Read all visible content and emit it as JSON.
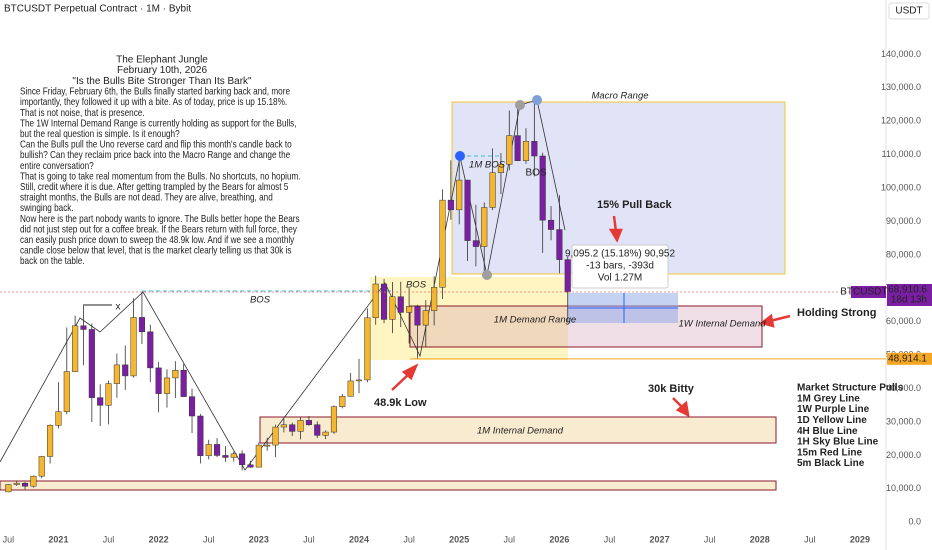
{
  "header": {
    "symbol": "BTCUSDT Perpetual Contract · 1M · Bybit",
    "currency": "USDT"
  },
  "chart_data": {
    "type": "candlestick",
    "x": [
      "2020-07",
      "2020-08",
      "2020-09",
      "2020-10",
      "2020-11",
      "2020-12",
      "2021-01",
      "2021-02",
      "2021-03",
      "2021-04",
      "2021-05",
      "2021-06",
      "2021-07",
      "2021-08",
      "2021-09",
      "2021-10",
      "2021-11",
      "2021-12",
      "2022-01",
      "2022-02",
      "2022-03",
      "2022-04",
      "2022-05",
      "2022-06",
      "2022-07",
      "2022-08",
      "2022-09",
      "2022-10",
      "2022-11",
      "2022-12",
      "2023-01",
      "2023-02",
      "2023-03",
      "2023-04",
      "2023-05",
      "2023-06",
      "2023-07",
      "2023-08",
      "2023-09",
      "2023-10",
      "2023-11",
      "2023-12",
      "2024-01",
      "2024-02",
      "2024-03",
      "2024-04",
      "2024-05",
      "2024-06",
      "2024-07",
      "2024-08",
      "2024-09",
      "2024-10",
      "2024-11",
      "2024-12",
      "2025-01",
      "2025-02",
      "2025-03",
      "2025-04",
      "2025-05",
      "2025-06",
      "2025-07",
      "2025-08",
      "2025-09",
      "2025-10",
      "2025-11",
      "2025-12",
      "2026-01",
      "2026-02"
    ],
    "open": [
      9100,
      11300,
      11700,
      10800,
      13800,
      19700,
      29000,
      33100,
      45100,
      58800,
      57700,
      37300,
      35000,
      41500,
      47100,
      43800,
      61300,
      57000,
      46200,
      38500,
      43200,
      45500,
      37600,
      31800,
      19900,
      23300,
      20000,
      19400,
      20500,
      17200,
      16500,
      23100,
      23100,
      28500,
      29200,
      27200,
      30500,
      29200,
      26000,
      27000,
      34600,
      37700,
      42300,
      42600,
      61200,
      71300,
      60700,
      67500,
      62800,
      64600,
      59000,
      63300,
      70300,
      96400,
      93500,
      102400,
      84300,
      82500,
      94200,
      104600,
      107100,
      115700,
      108200,
      114000,
      109600,
      90400,
      87600,
      78600
    ],
    "high": [
      11400,
      12500,
      12100,
      14000,
      19900,
      29300,
      41900,
      58300,
      61800,
      64800,
      59500,
      41300,
      42400,
      50500,
      52900,
      67000,
      69000,
      59100,
      48000,
      45800,
      48200,
      47400,
      40000,
      32400,
      24700,
      25200,
      22800,
      21100,
      21500,
      18400,
      23900,
      25300,
      29200,
      31000,
      29800,
      31400,
      31800,
      30200,
      27500,
      35000,
      38400,
      44700,
      48900,
      64000,
      73800,
      72800,
      71900,
      72000,
      70100,
      65100,
      66500,
      73600,
      99600,
      108300,
      109600,
      102500,
      95000,
      95700,
      111900,
      110500,
      123200,
      124500,
      117900,
      126200,
      110600,
      94600,
      97900,
      79400
    ],
    "low": [
      9000,
      10900,
      9900,
      10400,
      13200,
      17600,
      28100,
      32300,
      45000,
      47000,
      30000,
      28800,
      29300,
      37300,
      39600,
      43300,
      53300,
      42000,
      32900,
      34300,
      37200,
      37600,
      26700,
      17600,
      18800,
      19500,
      18100,
      18200,
      15500,
      16300,
      16500,
      21400,
      19500,
      26900,
      25800,
      24800,
      28900,
      25200,
      24900,
      26500,
      34100,
      37600,
      38600,
      41900,
      59100,
      59600,
      56600,
      58400,
      53500,
      49000,
      52600,
      58900,
      66800,
      90500,
      89200,
      78200,
      76600,
      74600,
      93400,
      98200,
      105300,
      108100,
      107300,
      103500,
      80600,
      84400,
      74500,
      59900
    ],
    "close": [
      11300,
      11700,
      10800,
      13800,
      19700,
      29000,
      33100,
      45100,
      58800,
      57700,
      37300,
      35000,
      41500,
      47100,
      43800,
      61300,
      57000,
      46200,
      38500,
      43200,
      45500,
      37600,
      31800,
      19900,
      23300,
      20000,
      19400,
      20500,
      17200,
      16500,
      23100,
      23100,
      28500,
      29200,
      27200,
      30500,
      29200,
      26000,
      27000,
      34600,
      37700,
      42300,
      42600,
      61200,
      71300,
      60700,
      67500,
      62800,
      64600,
      59000,
      63300,
      70300,
      96400,
      93500,
      102400,
      84300,
      82500,
      94200,
      104600,
      107100,
      115700,
      108200,
      114000,
      109600,
      90400,
      87600,
      78600,
      68910.6
    ],
    "up_color": "#f5b72f",
    "down_color": "#7b1fa2",
    "xlim": [
      "2020-06",
      "2029-04"
    ],
    "xticks": [
      {
        "value": "2020-07",
        "label": "Jul"
      },
      {
        "value": "2021-01",
        "label": "2021"
      },
      {
        "value": "2021-07",
        "label": "Jul"
      },
      {
        "value": "2022-01",
        "label": "2022"
      },
      {
        "value": "2022-07",
        "label": "Jul"
      },
      {
        "value": "2023-01",
        "label": "2023"
      },
      {
        "value": "2023-07",
        "label": "Jul"
      },
      {
        "value": "2024-01",
        "label": "2024"
      },
      {
        "value": "2024-07",
        "label": "Jul"
      },
      {
        "value": "2025-01",
        "label": "2025"
      },
      {
        "value": "2025-07",
        "label": "Jul"
      },
      {
        "value": "2026-01",
        "label": "2026"
      },
      {
        "value": "2026-07",
        "label": "Jul"
      },
      {
        "value": "2027-01",
        "label": "2027"
      },
      {
        "value": "2027-07",
        "label": "Jul"
      },
      {
        "value": "2028-01",
        "label": "2028"
      },
      {
        "value": "2028-07",
        "label": "Jul"
      },
      {
        "value": "2029-01",
        "label": "2029"
      }
    ],
    "ylim": [
      -5000,
      150000
    ],
    "yticks": [
      {
        "value": 0,
        "label": "0.0"
      },
      {
        "value": 10000,
        "label": "10,000.0"
      },
      {
        "value": 20000,
        "label": "20,000.0"
      },
      {
        "value": 30000,
        "label": "30,000.0"
      },
      {
        "value": 40000,
        "label": "40,000.0"
      },
      {
        "value": 50000,
        "label": "50,000.0"
      },
      {
        "value": 60000,
        "label": "60,000.0"
      },
      {
        "value": 70000,
        "label": "70,000.0"
      },
      {
        "value": 80000,
        "label": "80,000.0"
      },
      {
        "value": 90000,
        "label": "90,000.0"
      },
      {
        "value": 100000,
        "label": "100,000.0"
      },
      {
        "value": 110000,
        "label": "110,000.0"
      },
      {
        "value": 120000,
        "label": "120,000.0"
      },
      {
        "value": 130000,
        "label": "130,000.0"
      },
      {
        "value": 140000,
        "label": "140,000.0"
      }
    ],
    "grid": false,
    "last_price": {
      "symbol": "BTCUSDT.P",
      "value": 68910.6,
      "label": "68,910.6",
      "countdown": "18d 13h"
    },
    "low_line": {
      "value": 48914.1,
      "label": "48,914.1"
    },
    "annotations": {
      "macro_range": "Macro Range",
      "bos_left": "BOS",
      "bos_mid": "BOS",
      "bos_right": "BOS",
      "m_bos": "1M BOS",
      "pull_back": "15% Pull Back",
      "holding": "Holding Strong",
      "w_demand": "1W Internal Demand",
      "m_demand_range": "1M Demand Range",
      "m_internal_demand": "1M Internal Demand",
      "low": "48.9k Low",
      "bitty": "30k Bitty",
      "x_mark": "x"
    },
    "measure": [
      "9,095.2 (15.18%) 90,952",
      "-13 bars, -393d",
      "Vol 1.27M"
    ],
    "structure_legend": [
      "Market Structure Pulls",
      "1M Grey Line",
      "1W Purple Line",
      "1D Yellow Line",
      "4H Blue Line",
      "1H Sky Blue Line",
      "15m Red Line",
      "5m Black Line"
    ],
    "note": {
      "title": [
        "The Elephant Jungle",
        "February 10th, 2026",
        "\"Is the Bulls Bite Stronger Than Its Bark\""
      ],
      "lines": [
        "Since Friday, February 6th, the Bulls finally started barking back and, more",
        "importantly, they followed it up with a bite. As of today, price is up 15.18%.",
        "That is not noise, that is presence.",
        "The 1W Internal Demand Range is currently holding as support for the Bulls,",
        "but the real question is simple. Is it enough?",
        "Can the Bulls pull the Uno reverse card and flip this month's candle back to",
        "bullish? Can they reclaim price back into the Macro Range and change the",
        "entire conversation?",
        "That is going to take real momentum from the Bulls. No shortcuts, no hopium.",
        "Still, credit where it is due. After getting trampled by the Bears for almost 5",
        "straight months, the Bulls are not dead. They are alive, breathing, and",
        "swinging back.",
        "Now here is the part nobody wants to ignore. The Bulls better hope the Bears",
        "did not just step out for a coffee break. If the Bears return with full force, they",
        "can easily push price down to sweep the 48.9k low. And if we see a monthly",
        "candle close below that level, that is the market clearly telling us that 30k is",
        "back on the table."
      ]
    }
  }
}
